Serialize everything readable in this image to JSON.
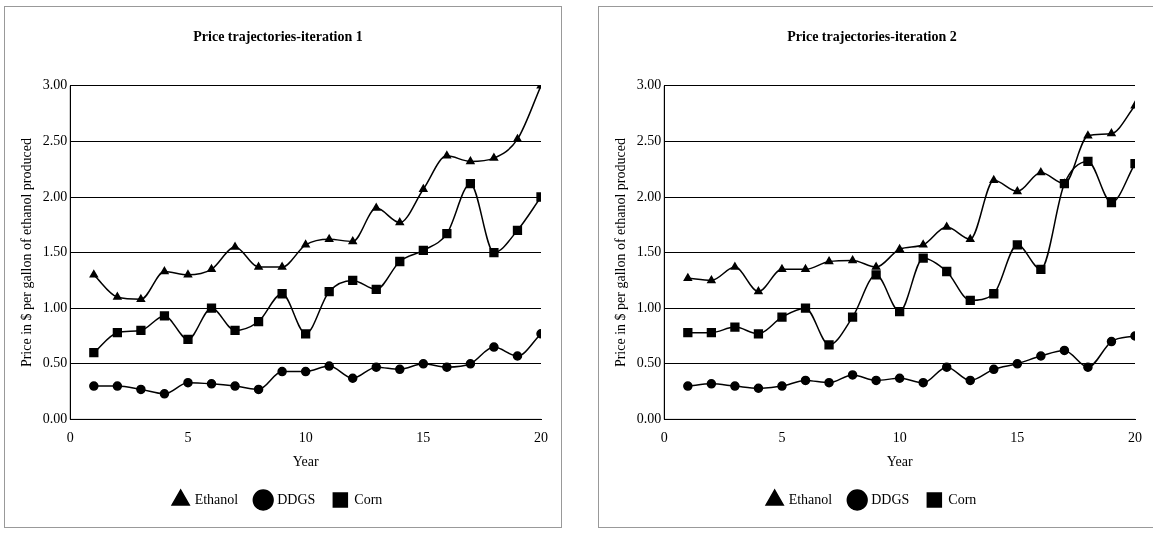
{
  "chart_data": [
    {
      "type": "line",
      "title": "Price trajectories-iteration 1",
      "xlabel": "Year",
      "ylabel": "Price in $ per gallon of ethanol produced",
      "x": [
        1,
        2,
        3,
        4,
        5,
        6,
        7,
        8,
        9,
        10,
        11,
        12,
        13,
        14,
        15,
        16,
        17,
        18,
        19,
        20
      ],
      "xlim": [
        0,
        20
      ],
      "xticks": [
        0,
        5,
        10,
        15,
        20
      ],
      "ylim": [
        0,
        3
      ],
      "yticks": [
        {
          "value": 0,
          "label": "0.00"
        },
        {
          "value": 0.5,
          "label": "0.50"
        },
        {
          "value": 1,
          "label": "1.00"
        },
        {
          "value": 1.5,
          "label": "1.50"
        },
        {
          "value": 2,
          "label": "2.00"
        },
        {
          "value": 2.5,
          "label": "2.50"
        },
        {
          "value": 3,
          "label": "3.00"
        }
      ],
      "grid": "y",
      "legend": "bottom",
      "series": [
        {
          "name": "Ethanol",
          "color": "#000000",
          "marker": "triangle",
          "values": [
            1.3,
            1.1,
            1.08,
            1.33,
            1.3,
            1.35,
            1.55,
            1.37,
            1.37,
            1.57,
            1.62,
            1.6,
            1.9,
            1.77,
            2.07,
            2.37,
            2.32,
            2.35,
            2.52,
            3.0
          ]
        },
        {
          "name": "DDGS",
          "color": "#000000",
          "marker": "circle",
          "values": [
            0.3,
            0.3,
            0.27,
            0.23,
            0.33,
            0.32,
            0.3,
            0.27,
            0.43,
            0.43,
            0.48,
            0.37,
            0.47,
            0.45,
            0.5,
            0.47,
            0.5,
            0.65,
            0.57,
            0.77
          ]
        },
        {
          "name": "Corn",
          "color": "#000000",
          "marker": "square",
          "values": [
            0.6,
            0.78,
            0.8,
            0.93,
            0.72,
            1.0,
            0.8,
            0.88,
            1.13,
            0.77,
            1.15,
            1.25,
            1.17,
            1.42,
            1.52,
            1.67,
            2.12,
            1.5,
            1.7,
            2.0
          ]
        }
      ]
    },
    {
      "type": "line",
      "title": "Price trajectories-iteration 2",
      "xlabel": "Year",
      "ylabel": "Price in $ per gallon of ethanol produced",
      "x": [
        1,
        2,
        3,
        4,
        5,
        6,
        7,
        8,
        9,
        10,
        11,
        12,
        13,
        14,
        15,
        16,
        17,
        18,
        19,
        20
      ],
      "xlim": [
        0,
        20
      ],
      "xticks": [
        0,
        5,
        10,
        15,
        20
      ],
      "ylim": [
        0,
        3
      ],
      "yticks": [
        {
          "value": 0,
          "label": "0.00"
        },
        {
          "value": 0.5,
          "label": "0.50"
        },
        {
          "value": 1,
          "label": "1.00"
        },
        {
          "value": 1.5,
          "label": "1.50"
        },
        {
          "value": 2,
          "label": "2.00"
        },
        {
          "value": 2.5,
          "label": "2.50"
        },
        {
          "value": 3,
          "label": "3.00"
        }
      ],
      "grid": "y",
      "legend": "bottom",
      "series": [
        {
          "name": "Ethanol",
          "color": "#000000",
          "marker": "triangle",
          "values": [
            1.27,
            1.25,
            1.37,
            1.15,
            1.35,
            1.35,
            1.42,
            1.43,
            1.37,
            1.53,
            1.57,
            1.73,
            1.62,
            2.15,
            2.05,
            2.22,
            2.12,
            2.55,
            2.57,
            2.82
          ]
        },
        {
          "name": "DDGS",
          "color": "#000000",
          "marker": "circle",
          "values": [
            0.3,
            0.32,
            0.3,
            0.28,
            0.3,
            0.35,
            0.33,
            0.4,
            0.35,
            0.37,
            0.33,
            0.47,
            0.35,
            0.45,
            0.5,
            0.57,
            0.62,
            0.47,
            0.7,
            0.75
          ]
        },
        {
          "name": "Corn",
          "color": "#000000",
          "marker": "square",
          "values": [
            0.78,
            0.78,
            0.83,
            0.77,
            0.92,
            1.0,
            0.67,
            0.92,
            1.3,
            0.97,
            1.45,
            1.33,
            1.07,
            1.13,
            1.57,
            1.35,
            2.12,
            2.32,
            1.95,
            2.3
          ]
        }
      ]
    }
  ]
}
